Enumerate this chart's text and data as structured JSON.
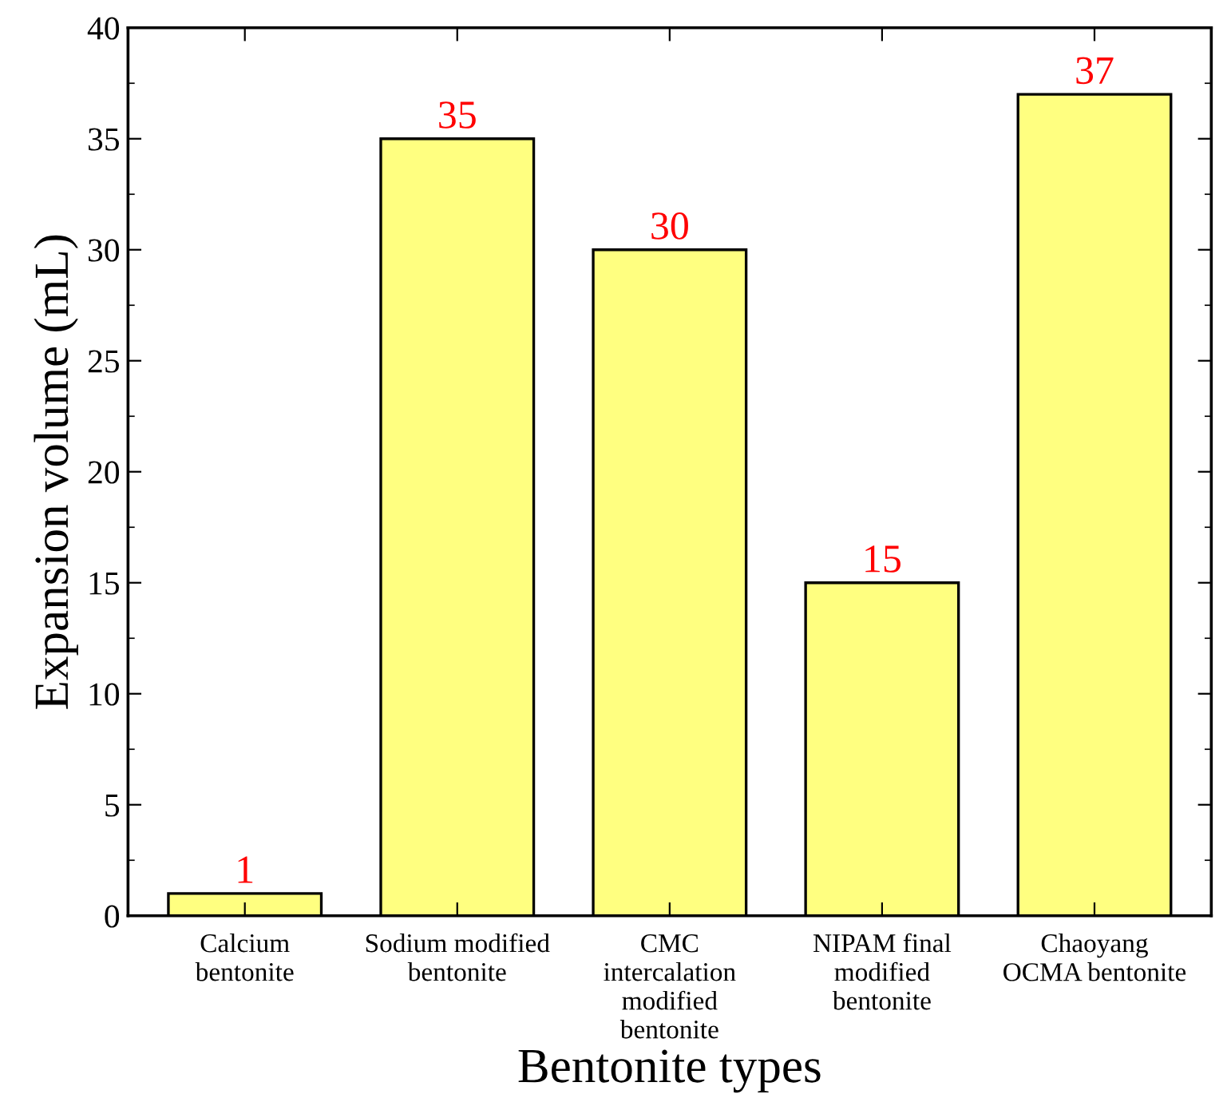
{
  "chart_data": {
    "type": "bar",
    "xlabel": "Bentonite types",
    "ylabel": "Expansion volume (mL)",
    "categories": [
      "Calcium\nbentonite",
      "Sodium modified\nbentonite",
      "CMC\nintercalation\nmodified\nbentonite",
      "NIPAM final\nmodified\nbentonite",
      "Chaoyang\nOCMA bentonite"
    ],
    "values": [
      1,
      35,
      30,
      15,
      37
    ],
    "color": "#ffff80",
    "data_labels": true,
    "ylim": [
      0,
      40
    ],
    "yticks": [
      0,
      5,
      10,
      15,
      20,
      25,
      30,
      35,
      40
    ],
    "grid": false,
    "legend": false
  }
}
